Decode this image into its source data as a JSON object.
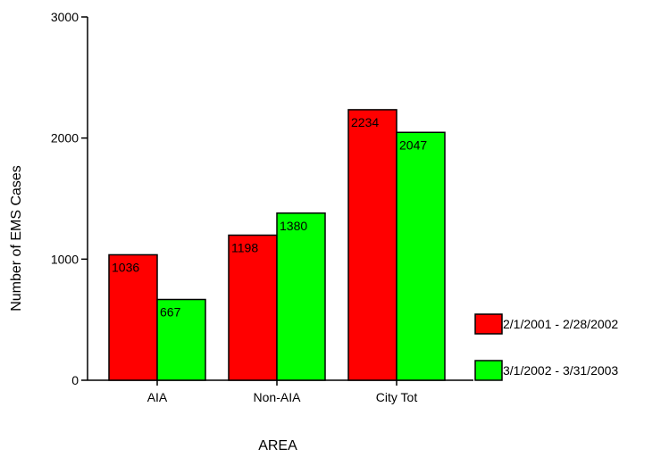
{
  "chart_data": {
    "type": "bar",
    "title": "",
    "xlabel": "AREA",
    "ylabel": "Number of EMS Cases",
    "ylim": [
      0,
      3000
    ],
    "yticks": [
      "0",
      "1000",
      "2000",
      "3000"
    ],
    "categories": [
      "AIA",
      "Non-AIA",
      "City Tot"
    ],
    "series": [
      {
        "name": "2/1/2001 - 2/28/2002",
        "values": [
          1036,
          1198,
          2234
        ],
        "color": "#ff0000"
      },
      {
        "name": "3/1/2002 - 3/31/2003",
        "values": [
          667,
          1380,
          2047
        ],
        "color": "#00ff00"
      }
    ],
    "data_labels": [
      [
        "1036",
        "1198",
        "2234"
      ],
      [
        "667",
        "1380",
        "2047"
      ]
    ],
    "legend_position": "right",
    "grid": false
  }
}
